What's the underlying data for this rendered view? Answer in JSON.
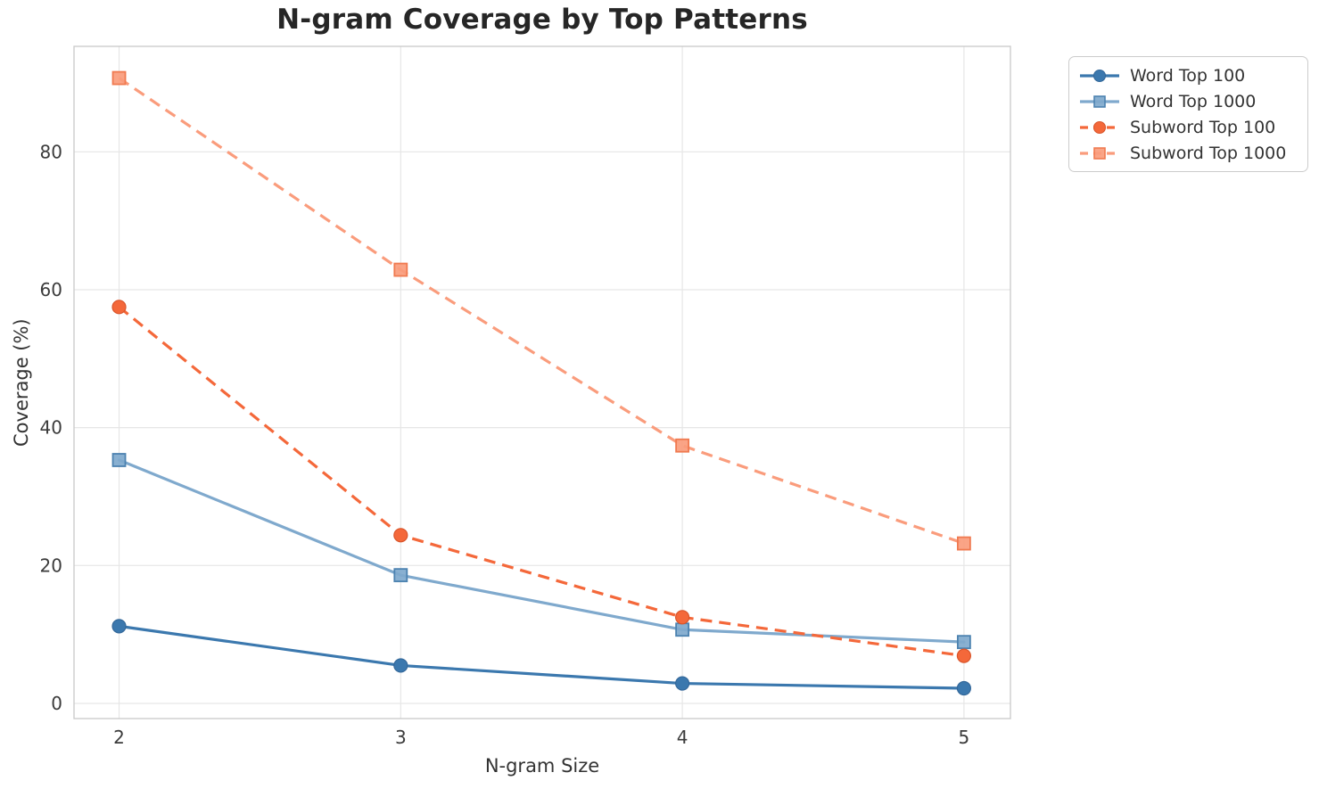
{
  "chart_data": {
    "type": "line",
    "title": "N-gram Coverage by Top Patterns",
    "xlabel": "N-gram Size",
    "ylabel": "Coverage (%)",
    "x": [
      2,
      3,
      4,
      5
    ],
    "xticks": [
      "2",
      "3",
      "4",
      "5"
    ],
    "yticks": [
      0,
      20,
      40,
      60,
      80
    ],
    "xlim": [
      1.84,
      5.165
    ],
    "ylim": [
      -2.2,
      95.3
    ],
    "grid": true,
    "legend_position": "outside-upper-right",
    "series": [
      {
        "name": "Word Top 100",
        "values": [
          11.2,
          5.5,
          2.9,
          2.2
        ],
        "color": "#3b78ae",
        "edge_color": "#34689a",
        "line_style": "solid",
        "marker": "circle"
      },
      {
        "name": "Word Top 1000",
        "values": [
          35.3,
          18.6,
          10.7,
          8.9
        ],
        "color": "#7fa9cd",
        "edge_color": "#4c82b0",
        "line_style": "solid",
        "marker": "square"
      },
      {
        "name": "Subword Top 100",
        "values": [
          57.5,
          24.4,
          12.5,
          6.9
        ],
        "color": "#f4683a",
        "edge_color": "#d9552b",
        "line_style": "dashed",
        "marker": "circle"
      },
      {
        "name": "Subword Top 1000",
        "values": [
          90.7,
          62.9,
          37.4,
          23.2
        ],
        "color": "#fa9c7c",
        "edge_color": "#f07a50",
        "line_style": "dashed",
        "marker": "square"
      }
    ],
    "style": {
      "grid_color": "#e6e6e6",
      "spine_color": "#cccccc",
      "tick_label_color": "#3b3b3b",
      "title_color": "#262626",
      "line_width": 3.2
    }
  }
}
